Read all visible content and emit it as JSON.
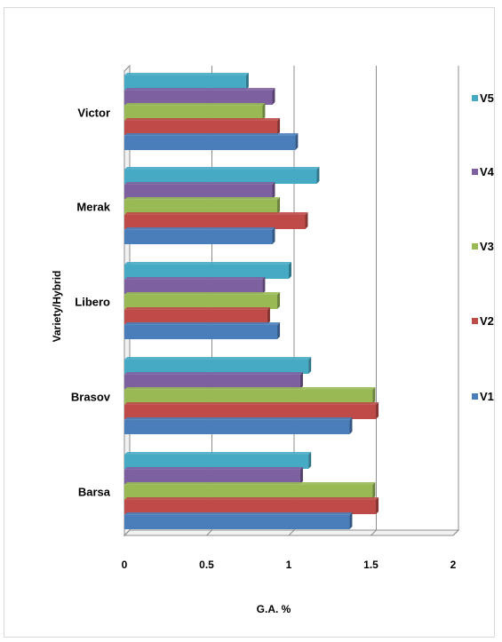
{
  "chart_data": {
    "type": "bar",
    "orientation": "horizontal",
    "categories": [
      "Barsa",
      "Brasov",
      "Libero",
      "Merak",
      "Victor"
    ],
    "series": [
      {
        "name": "V1",
        "color": "#4a7ebb",
        "values": [
          1.37,
          1.37,
          0.93,
          0.9,
          1.04
        ]
      },
      {
        "name": "V2",
        "color": "#be4b48",
        "values": [
          1.53,
          1.53,
          0.87,
          1.1,
          0.93
        ]
      },
      {
        "name": "V3",
        "color": "#98b954",
        "values": [
          1.51,
          1.51,
          0.93,
          0.93,
          0.84
        ]
      },
      {
        "name": "V4",
        "color": "#7d60a0",
        "values": [
          1.07,
          1.07,
          0.84,
          0.9,
          0.9
        ]
      },
      {
        "name": "V5",
        "color": "#46aac5",
        "values": [
          1.12,
          1.12,
          1.0,
          1.17,
          0.74
        ]
      }
    ],
    "xlim": [
      0,
      2
    ],
    "x_ticks": [
      "0",
      "0.5",
      "1",
      "1.5",
      "2"
    ],
    "xlabel": "G.A. %",
    "ylabel": "Variety/Hybrid",
    "legend": {
      "placement": "right",
      "order": [
        "V5",
        "V4",
        "V3",
        "V2",
        "V1"
      ]
    },
    "grid": true,
    "style": "3d"
  }
}
